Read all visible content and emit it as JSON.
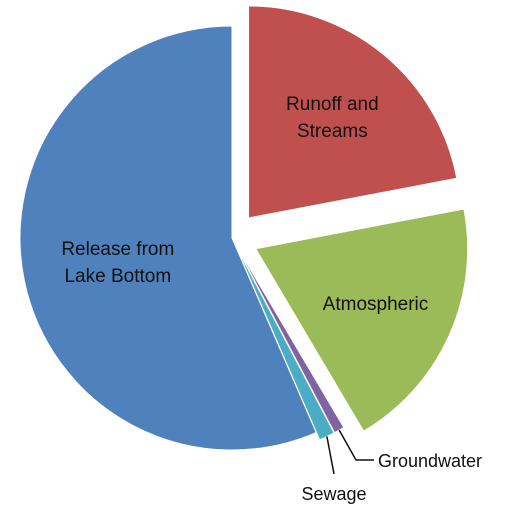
{
  "chart_data": {
    "type": "pie",
    "title": "",
    "slices": [
      {
        "label": "Runoff and Streams",
        "label_lines": [
          "Runoff and",
          "Streams"
        ],
        "value": 22,
        "color": "#C0504D"
      },
      {
        "label": "Atmospheric",
        "label_lines": [
          "Atmospheric"
        ],
        "value": 19.5,
        "color": "#9BBB59"
      },
      {
        "label": "Groundwater",
        "label_lines": [
          "Groundwater"
        ],
        "value": 0.8,
        "color": "#8064A2"
      },
      {
        "label": "Sewage",
        "label_lines": [
          "Sewage"
        ],
        "value": 1.2,
        "color": "#4BACC6"
      },
      {
        "label": "Release from Lake Bottom",
        "label_lines": [
          "Release from",
          "Lake Bottom"
        ],
        "value": 56.5,
        "color": "#4F81BD"
      }
    ]
  }
}
